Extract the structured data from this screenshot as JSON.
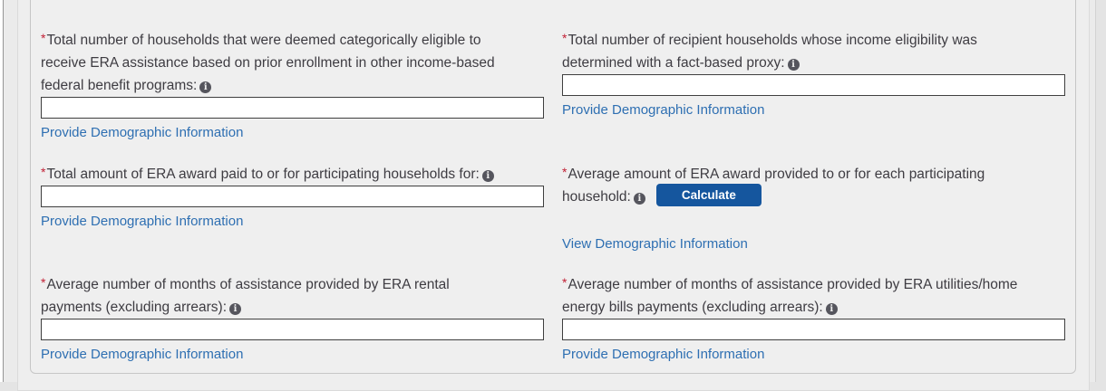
{
  "symbols": {
    "required": "*",
    "info_glyph": "i"
  },
  "colors": {
    "link_blue": "#2E6FB2",
    "button_blue": "#15569E",
    "required_red": "#C22035",
    "label_text": "#3E3C42",
    "panel_bg": "#EFEFEF",
    "input_border": "#3F3F3F"
  },
  "form": {
    "fields": [
      {
        "name": "total-households-categorically-eligible",
        "label": "Total number of households that were deemed categorically eligible to\nreceive ERA assistance based on prior enrollment in other income-based\nfederal benefit programs:",
        "value": "",
        "link_label": "Provide Demographic Information"
      },
      {
        "name": "recipient-households-fact-based-proxy",
        "label": "Total number of recipient households whose income eligibility was\ndetermined with a fact-based proxy:",
        "value": "",
        "link_label": "Provide Demographic Information"
      },
      {
        "name": "total-era-award-paid",
        "label": "Total amount of ERA award paid to or for participating households for:",
        "value": "",
        "link_label": "Provide Demographic Information"
      },
      {
        "name": "average-era-award-per-household",
        "label": "Average amount of ERA award provided to or for each participating\nhousehold:",
        "button_label": "Calculate",
        "link_label": "View Demographic Information"
      },
      {
        "name": "avg-months-rental-payments",
        "label": "Average number of months of assistance provided by ERA rental\npayments (excluding arrears):",
        "value": "",
        "link_label": "Provide Demographic Information"
      },
      {
        "name": "avg-months-utilities-payments",
        "label": "Average number of months of assistance provided by ERA utilities/home\nenergy bills payments (excluding arrears):",
        "value": "",
        "link_label": "Provide Demographic Information"
      }
    ]
  }
}
